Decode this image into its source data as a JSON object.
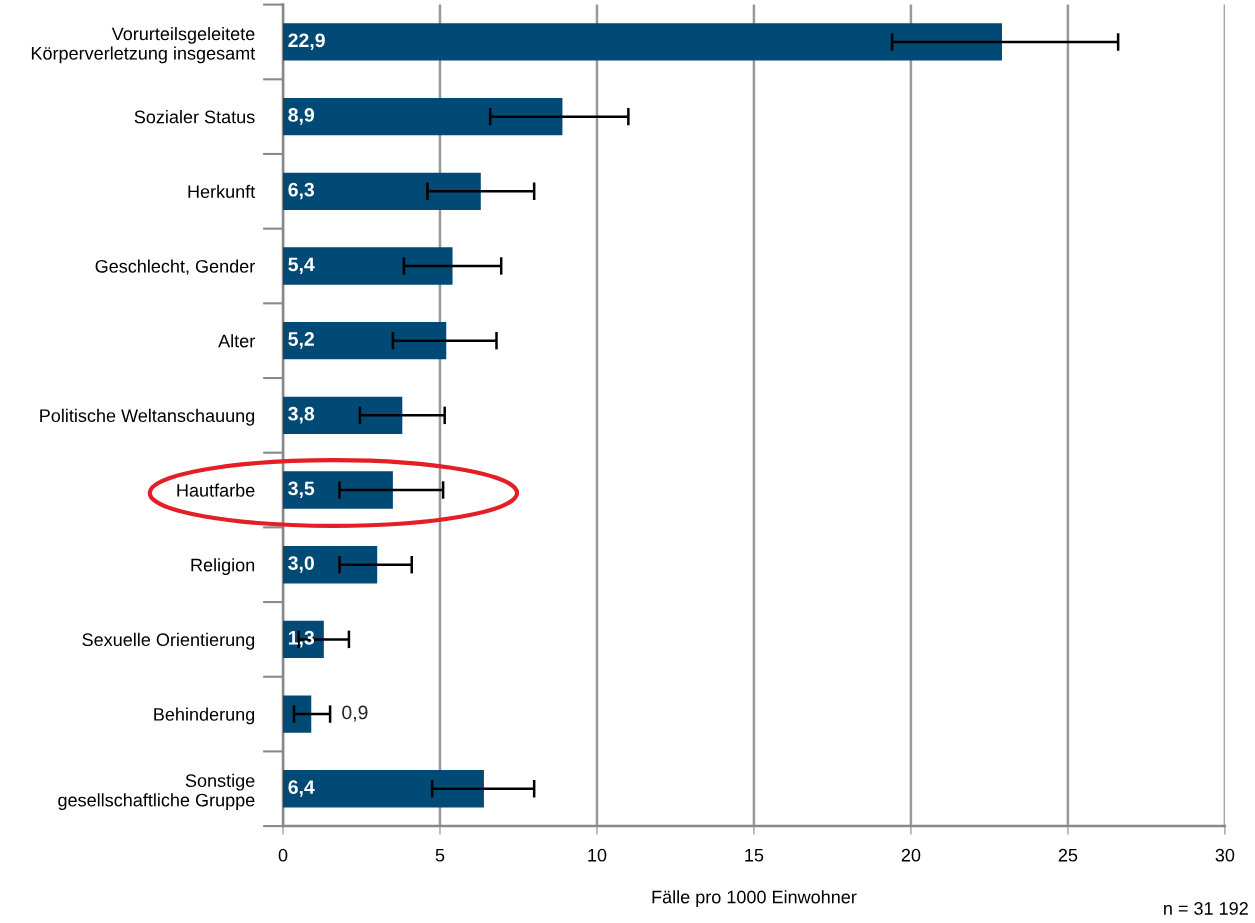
{
  "chart_data": {
    "type": "bar",
    "orientation": "horizontal",
    "categories": [
      "Vorurteilsgeleitete\nKörperverletzung insgesamt",
      "Sozialer Status",
      "Herkunft",
      "Geschlecht, Gender",
      "Alter",
      "Politische Weltanschauung",
      "Hautfarbe",
      "Religion",
      "Sexuelle Orientierung",
      "Behinderung",
      "Sonstige\ngesellschaftliche Gruppe"
    ],
    "values": [
      22.9,
      8.9,
      6.3,
      5.4,
      5.2,
      3.8,
      3.5,
      3.0,
      1.3,
      0.9,
      6.4
    ],
    "value_labels": [
      "22,9",
      "8,9",
      "6,3",
      "5,4",
      "5,2",
      "3,8",
      "3,5",
      "3,0",
      "1,3",
      "0,9",
      "6,4"
    ],
    "errors": [
      [
        19.4,
        26.6
      ],
      [
        6.6,
        11.0
      ],
      [
        4.6,
        8.0
      ],
      [
        3.85,
        6.95
      ],
      [
        3.5,
        6.8
      ],
      [
        2.45,
        5.15
      ],
      [
        1.8,
        5.1
      ],
      [
        1.8,
        4.1
      ],
      [
        0.5,
        2.1
      ],
      [
        0.35,
        1.5
      ],
      [
        4.75,
        8.0
      ]
    ],
    "color": "#004a75",
    "xlim": [
      0,
      30
    ],
    "xticks": [
      0,
      5,
      10,
      15,
      20,
      25,
      30
    ],
    "xlabel": "Fälle pro 1000 Einwohner",
    "annotations": [
      "n = 31 192"
    ],
    "grid": "x"
  }
}
